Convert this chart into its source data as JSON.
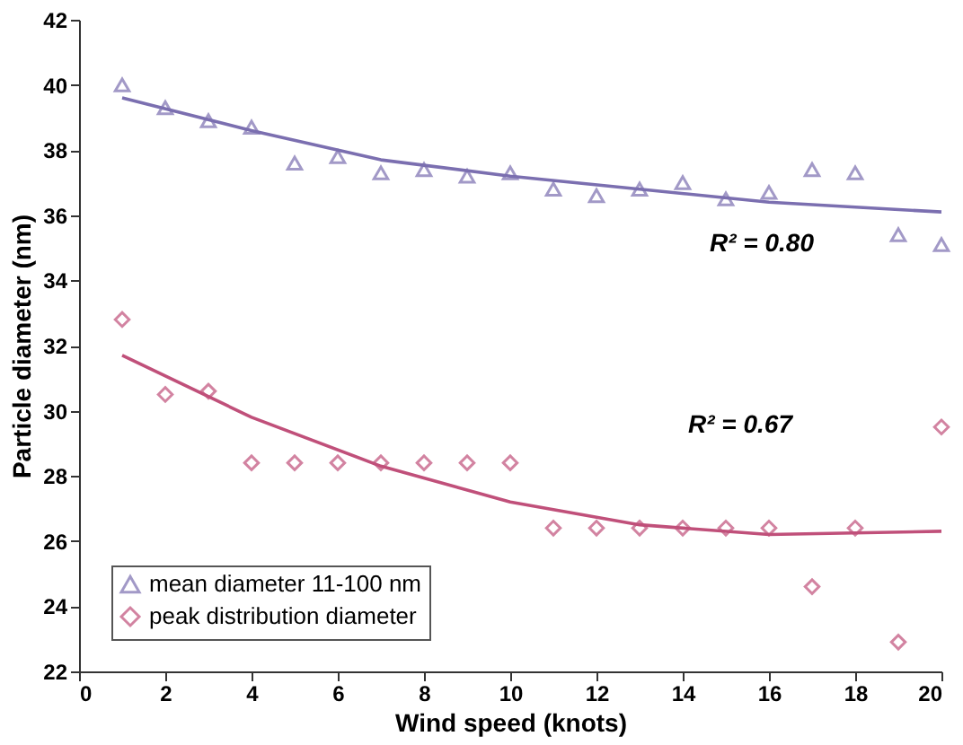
{
  "chart_data": {
    "type": "scatter",
    "xlabel": "Wind speed (knots)",
    "ylabel": "Particle diameter (nm)",
    "x": [
      1,
      2,
      3,
      4,
      5,
      6,
      7,
      8,
      9,
      10,
      11,
      12,
      13,
      14,
      15,
      16,
      17,
      18,
      19,
      20
    ],
    "series": [
      {
        "name": "mean diameter 11-100 nm",
        "color": "#7b6fb0",
        "marker": "triangle",
        "values": [
          40.0,
          39.3,
          38.9,
          38.7,
          37.6,
          37.8,
          37.3,
          37.4,
          37.2,
          37.3,
          36.8,
          36.6,
          36.8,
          37.0,
          36.5,
          36.7,
          37.4,
          37.3,
          35.4,
          35.1
        ]
      },
      {
        "name": "peak distribution diameter",
        "color": "#c0507a",
        "marker": "diamond",
        "values": [
          32.8,
          30.5,
          30.6,
          28.4,
          28.4,
          28.4,
          28.4,
          28.4,
          28.4,
          28.4,
          26.4,
          26.4,
          26.4,
          26.4,
          26.4,
          26.4,
          24.6,
          26.4,
          22.9,
          29.5
        ]
      },
      {
        "type": "line",
        "color": "#7b6fb0",
        "x": [
          1,
          4,
          7,
          10,
          13,
          16,
          20
        ],
        "values": [
          39.6,
          38.6,
          37.7,
          37.2,
          36.8,
          36.4,
          36.1
        ]
      },
      {
        "type": "line",
        "color": "#c0507a",
        "x": [
          1,
          4,
          7,
          10,
          13,
          16,
          20
        ],
        "values": [
          31.7,
          29.8,
          28.3,
          27.2,
          26.5,
          26.2,
          26.3
        ]
      }
    ],
    "xlim": [
      0,
      20
    ],
    "xticks": [
      0,
      2,
      4,
      6,
      8,
      10,
      12,
      14,
      16,
      18,
      20
    ],
    "ylim": [
      22,
      42
    ],
    "yticks": [
      22,
      24,
      26,
      28,
      30,
      32,
      34,
      36,
      38,
      40,
      42
    ],
    "grid": false,
    "legend": "bottom left",
    "annotations": [
      "R² = 0.80",
      "R² = 0.67"
    ]
  }
}
